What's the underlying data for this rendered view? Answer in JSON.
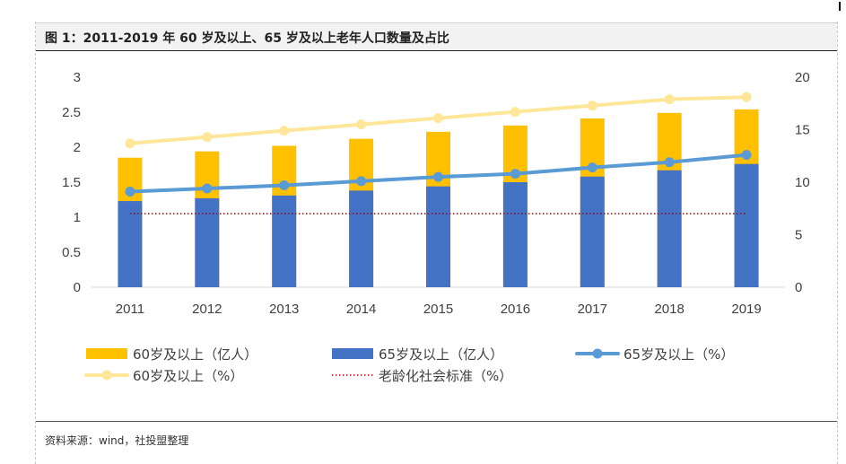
{
  "header": {
    "title": "图 1：2011-2019 年 60 岁及以上、65 岁及以上老年人口数量及占比"
  },
  "footer": {
    "source": "资料来源：wind，社投盟整理"
  },
  "colors": {
    "bar60": "#FFC000",
    "bar65": "#4472C4",
    "line65": "#5B9BD5",
    "line60": "#FFE699",
    "standard": "#C00000",
    "axis": "#D9D9D9"
  },
  "chart_data": {
    "type": "bar",
    "title": "图 1：2011-2019 年 60 岁及以上、65 岁及以上老年人口数量及占比",
    "categories": [
      "2011",
      "2012",
      "2013",
      "2014",
      "2015",
      "2016",
      "2017",
      "2018",
      "2019"
    ],
    "ylim_left": [
      0,
      3
    ],
    "ylim_right": [
      0,
      20
    ],
    "yticks_left": [
      "0",
      "0.5",
      "1",
      "1.5",
      "2",
      "2.5",
      "3"
    ],
    "yticks_right": [
      "0",
      "5",
      "10",
      "15",
      "20"
    ],
    "series": [
      {
        "name": "60岁及以上（亿人）",
        "kind": "bar",
        "axis": "left",
        "values": [
          1.85,
          1.94,
          2.02,
          2.12,
          2.22,
          2.31,
          2.41,
          2.49,
          2.54
        ]
      },
      {
        "name": "65岁及以上（亿人）",
        "kind": "bar",
        "axis": "left",
        "values": [
          1.23,
          1.27,
          1.31,
          1.38,
          1.44,
          1.5,
          1.58,
          1.67,
          1.76
        ]
      },
      {
        "name": "65岁及以上（%）",
        "kind": "line",
        "axis": "right",
        "values": [
          9.1,
          9.4,
          9.7,
          10.1,
          10.5,
          10.8,
          11.4,
          11.9,
          12.6
        ]
      },
      {
        "name": "60岁及以上（%）",
        "kind": "line",
        "axis": "right",
        "values": [
          13.7,
          14.3,
          14.9,
          15.5,
          16.1,
          16.7,
          17.3,
          17.9,
          18.1
        ]
      },
      {
        "name": "老龄化社会标准（%）",
        "kind": "dotted-line",
        "axis": "right",
        "values": [
          7,
          7,
          7,
          7,
          7,
          7,
          7,
          7,
          7
        ]
      }
    ],
    "legend_position": "bottom"
  }
}
